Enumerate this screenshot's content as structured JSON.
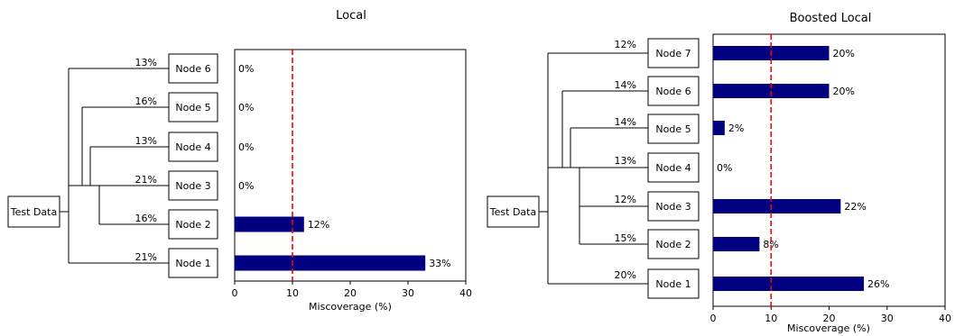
{
  "chart_data": [
    {
      "type": "bar",
      "orientation": "horizontal",
      "title": "Local",
      "xlabel": "Miscoverage (%)",
      "xlim": [
        0,
        40
      ],
      "xticks": [
        0,
        10,
        20,
        30,
        40
      ],
      "threshold": 10,
      "root_label": "Test Data",
      "categories": [
        "Node 6",
        "Node 5",
        "Node 4",
        "Node 3",
        "Node 2",
        "Node 1"
      ],
      "values": [
        0,
        0,
        0,
        0,
        12,
        33
      ],
      "value_labels": [
        "0%",
        "0%",
        "0%",
        "0%",
        "12%",
        "33%"
      ],
      "branch_labels": [
        "13%",
        "16%",
        "13%",
        "21%",
        "16%",
        "21%"
      ]
    },
    {
      "type": "bar",
      "orientation": "horizontal",
      "title": "Boosted Local",
      "xlabel": "Miscoverage (%)",
      "xlim": [
        0,
        40
      ],
      "xticks": [
        0,
        10,
        20,
        30,
        40
      ],
      "threshold": 10,
      "root_label": "Test Data",
      "categories": [
        "Node 7",
        "Node 6",
        "Node 5",
        "Node 4",
        "Node 3",
        "Node 2",
        "Node 1"
      ],
      "values": [
        20,
        20,
        2,
        0,
        22,
        8,
        26
      ],
      "value_labels": [
        "20%",
        "20%",
        "2%",
        "0%",
        "22%",
        "8%",
        "26%"
      ],
      "branch_labels": [
        "12%",
        "14%",
        "14%",
        "13%",
        "12%",
        "15%",
        "20%"
      ]
    }
  ],
  "colors": {
    "bar": "#000080",
    "threshold_line": "#ff0000",
    "axis": "#000000"
  }
}
